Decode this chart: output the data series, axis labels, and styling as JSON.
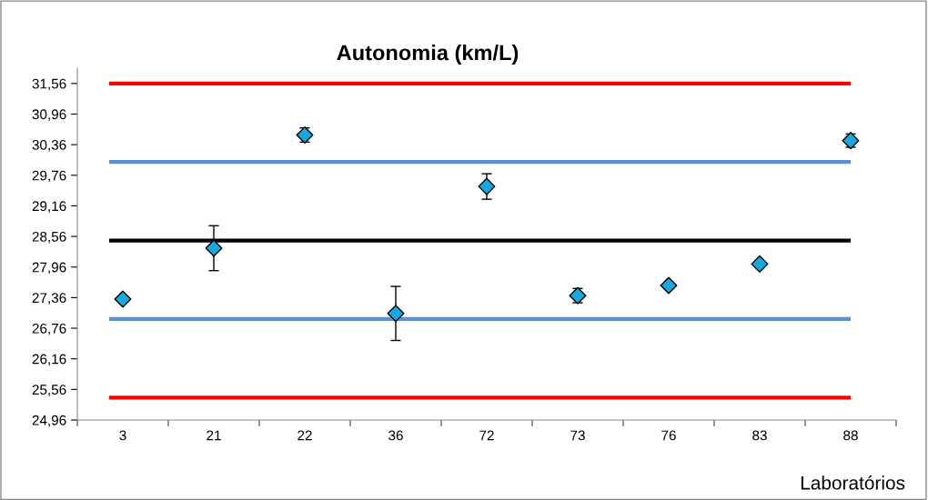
{
  "chart_data": {
    "type": "scatter",
    "title": "Autonomia (km/L)",
    "xlabel": "Laboratórios",
    "categories": [
      "3",
      "21",
      "22",
      "36",
      "72",
      "73",
      "76",
      "83",
      "88"
    ],
    "values": [
      27.33,
      28.33,
      30.55,
      27.05,
      29.54,
      27.4,
      27.6,
      28.02,
      30.44
    ],
    "errors": [
      null,
      0.44,
      0.14,
      0.53,
      0.25,
      0.14,
      null,
      null,
      0.13
    ],
    "color": "#1aa7e0",
    "marker": "diamond",
    "grid": false,
    "legend": false,
    "ylim": [
      24.96,
      31.86
    ],
    "yticks": [
      {
        "value": 24.96,
        "label": "24,96"
      },
      {
        "value": 25.56,
        "label": "25,56"
      },
      {
        "value": 26.16,
        "label": "26,16"
      },
      {
        "value": 26.76,
        "label": "26,76"
      },
      {
        "value": 27.36,
        "label": "27,36"
      },
      {
        "value": 27.96,
        "label": "27,96"
      },
      {
        "value": 28.56,
        "label": "28,56"
      },
      {
        "value": 29.16,
        "label": "29,16"
      },
      {
        "value": 29.76,
        "label": "29,76"
      },
      {
        "value": 30.36,
        "label": "30,36"
      },
      {
        "value": 30.96,
        "label": "30,96"
      },
      {
        "value": 31.56,
        "label": "31,56"
      }
    ],
    "ref_lines": [
      {
        "axis": "y",
        "value": 31.56,
        "color": "#ff0000"
      },
      {
        "axis": "y",
        "value": 30.02,
        "color": "#5b8fd4"
      },
      {
        "axis": "y",
        "value": 28.48,
        "color": "#000000"
      },
      {
        "axis": "y",
        "value": 26.94,
        "color": "#5b8fd4"
      },
      {
        "axis": "y",
        "value": 25.4,
        "color": "#ff0000"
      }
    ]
  }
}
